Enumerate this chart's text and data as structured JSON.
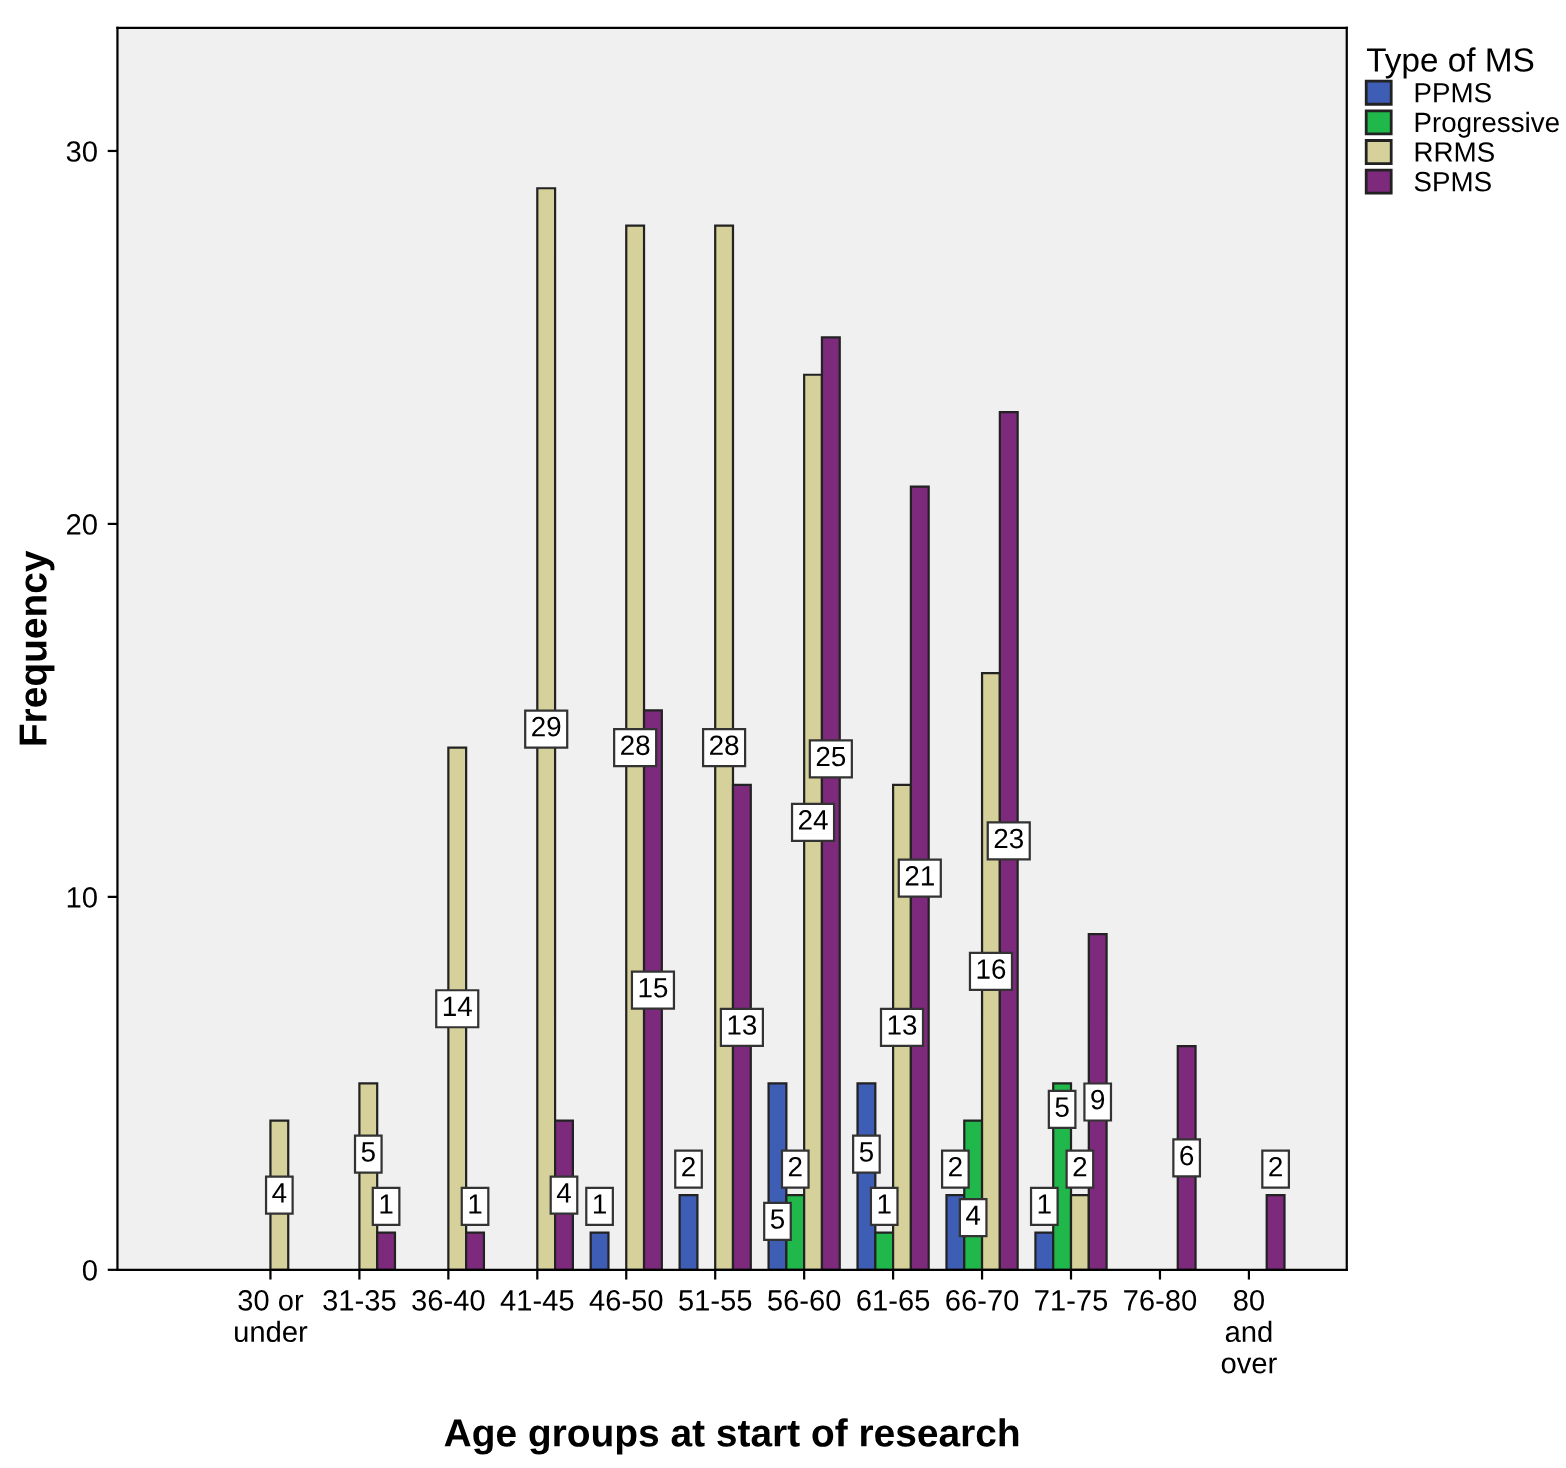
{
  "chart_data": {
    "type": "bar",
    "xlabel": "Age groups at start of research",
    "ylabel": "Frequency",
    "legend_title": "Type of MS",
    "legend": "top right",
    "categories": [
      "30 or\nunder",
      "31-35",
      "36-40",
      "41-45",
      "46-50",
      "51-55",
      "56-60",
      "61-65",
      "66-70",
      "71-75",
      "76-80",
      "80\nand\nover"
    ],
    "series": [
      {
        "name": "PPMS",
        "color": "#3e5eb5",
        "values": [
          null,
          null,
          null,
          null,
          1,
          2,
          5,
          5,
          2,
          1,
          null,
          null
        ]
      },
      {
        "name": "Progressive",
        "color": "#20b84a",
        "values": [
          null,
          null,
          null,
          null,
          null,
          null,
          2,
          1,
          4,
          5,
          null,
          null
        ]
      },
      {
        "name": "RRMS",
        "color": "#d6d19a",
        "values": [
          4,
          5,
          14,
          29,
          28,
          28,
          24,
          13,
          16,
          2,
          null,
          null
        ]
      },
      {
        "name": "SPMS",
        "color": "#7d2a7d",
        "values": [
          null,
          1,
          1,
          4,
          15,
          13,
          25,
          21,
          23,
          9,
          6,
          2
        ]
      }
    ],
    "ylim": [
      0,
      33.3
    ],
    "yticks": [
      0,
      10,
      20,
      30
    ],
    "grid": false,
    "data_labels": true
  }
}
